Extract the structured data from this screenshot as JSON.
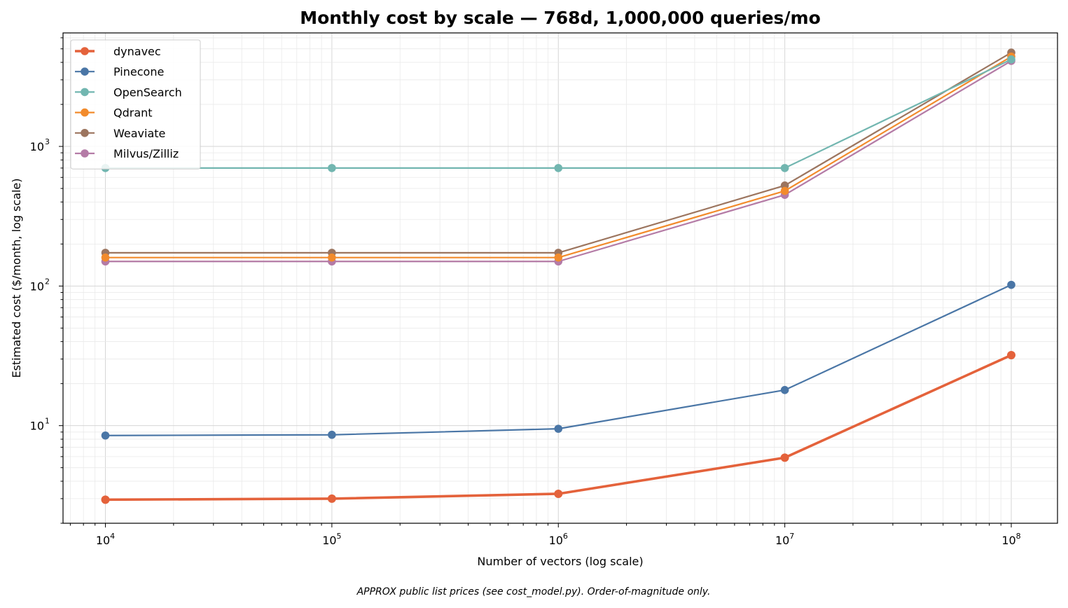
{
  "chart_data": {
    "type": "line",
    "title": "Monthly cost by scale — 768d, 1,000,000 queries/mo",
    "xlabel": "Number of vectors (log scale)",
    "ylabel": "Estimated cost ($/month, log scale)",
    "footnote": "APPROX public list prices (see cost_model.py). Order-of-magnitude only.",
    "x_scale": "log",
    "y_scale": "log",
    "xlim": [
      6500,
      160000000
    ],
    "ylim": [
      2.0,
      6500
    ],
    "x": [
      10000,
      100000,
      1000000,
      10000000,
      100000000
    ],
    "x_ticks": [
      {
        "value": 10000,
        "base": "10",
        "exp": "4"
      },
      {
        "value": 100000,
        "base": "10",
        "exp": "5"
      },
      {
        "value": 1000000,
        "base": "10",
        "exp": "6"
      },
      {
        "value": 10000000,
        "base": "10",
        "exp": "7"
      },
      {
        "value": 100000000,
        "base": "10",
        "exp": "8"
      }
    ],
    "y_ticks": [
      {
        "value": 10,
        "base": "10",
        "exp": "1"
      },
      {
        "value": 100,
        "base": "10",
        "exp": "2"
      },
      {
        "value": 1000,
        "base": "10",
        "exp": "3"
      }
    ],
    "grid": true,
    "legend_position": "top-left",
    "series": [
      {
        "name": "dynavec",
        "color": "#e4623b",
        "emphasis": true,
        "values": [
          2.95,
          3.0,
          3.25,
          5.9,
          32
        ]
      },
      {
        "name": "Pinecone",
        "color": "#4a76a6",
        "values": [
          8.5,
          8.6,
          9.5,
          18,
          102
        ]
      },
      {
        "name": "OpenSearch",
        "color": "#72b6b0",
        "values": [
          700,
          700,
          700,
          700,
          4200
        ]
      },
      {
        "name": "Qdrant",
        "color": "#f28b2c",
        "values": [
          160,
          160,
          160,
          480,
          4400
        ]
      },
      {
        "name": "Weaviate",
        "color": "#9c755f",
        "values": [
          173,
          173,
          173,
          525,
          4700
        ]
      },
      {
        "name": "Milvus/Zilliz",
        "color": "#b47ba6",
        "values": [
          150,
          150,
          150,
          450,
          4100
        ]
      }
    ]
  }
}
